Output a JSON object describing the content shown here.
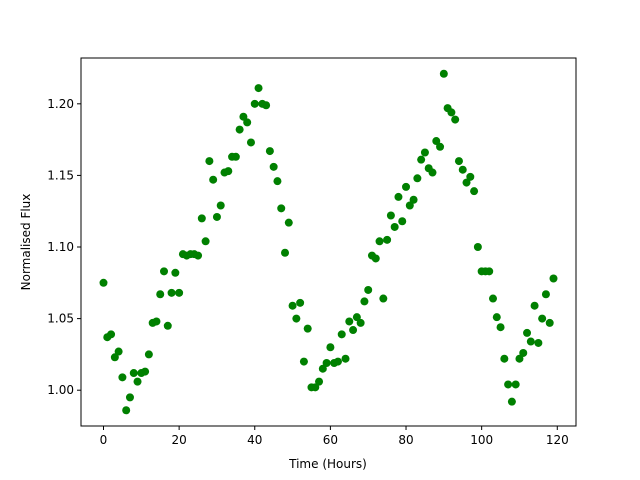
{
  "chart_data": {
    "type": "scatter",
    "xlabel": "Time (Hours)",
    "ylabel": "Normalised Flux",
    "color": "#008000",
    "grid": false,
    "x": [
      0,
      1,
      2,
      3,
      4,
      5,
      6,
      7,
      8,
      9,
      10,
      11,
      12,
      13,
      14,
      15,
      16,
      17,
      18,
      19,
      20,
      21,
      22,
      23,
      24,
      25,
      26,
      27,
      28,
      29,
      30,
      31,
      32,
      33,
      34,
      35,
      36,
      37,
      38,
      39,
      40,
      41,
      42,
      43,
      44,
      45,
      46,
      47,
      48,
      49,
      50,
      51,
      52,
      53,
      54,
      55,
      56,
      57,
      58,
      59,
      60,
      61,
      62,
      63,
      64,
      65,
      66,
      67,
      68,
      69,
      70,
      71,
      72,
      73,
      74,
      75,
      76,
      77,
      78,
      79,
      80,
      81,
      82,
      83,
      84,
      85,
      86,
      87,
      88,
      89,
      90,
      91,
      92,
      93,
      94,
      95,
      96,
      97,
      98,
      99,
      100,
      101,
      102,
      103,
      104,
      105,
      106,
      107,
      108,
      109,
      110,
      111,
      112,
      113,
      114,
      115,
      116,
      117,
      118,
      119
    ],
    "values": [
      1.075,
      1.037,
      1.039,
      1.023,
      1.027,
      1.009,
      0.986,
      0.995,
      1.012,
      1.006,
      1.012,
      1.013,
      1.025,
      1.047,
      1.048,
      1.067,
      1.083,
      1.045,
      1.068,
      1.082,
      1.068,
      1.095,
      1.094,
      1.095,
      1.095,
      1.094,
      1.12,
      1.104,
      1.16,
      1.147,
      1.121,
      1.129,
      1.152,
      1.153,
      1.163,
      1.163,
      1.182,
      1.191,
      1.187,
      1.173,
      1.2,
      1.211,
      1.2,
      1.199,
      1.167,
      1.156,
      1.146,
      1.127,
      1.096,
      1.117,
      1.059,
      1.05,
      1.061,
      1.02,
      1.043,
      1.002,
      1.002,
      1.006,
      1.015,
      1.019,
      1.03,
      1.019,
      1.02,
      1.039,
      1.022,
      1.048,
      1.042,
      1.051,
      1.047,
      1.062,
      1.07,
      1.094,
      1.092,
      1.104,
      1.064,
      1.105,
      1.122,
      1.114,
      1.135,
      1.118,
      1.142,
      1.129,
      1.133,
      1.148,
      1.161,
      1.166,
      1.155,
      1.152,
      1.174,
      1.17,
      1.221,
      1.197,
      1.194,
      1.189,
      1.16,
      1.154,
      1.145,
      1.149,
      1.139,
      1.1,
      1.083,
      1.083,
      1.083,
      1.064,
      1.051,
      1.044,
      1.022,
      1.004,
      0.992,
      1.004,
      1.022,
      1.026,
      1.04,
      1.034,
      1.059,
      1.033,
      1.05,
      1.067,
      1.047,
      1.078
    ],
    "xlim": [
      -5.95,
      124.95
    ],
    "xticks": [
      0,
      20,
      40,
      60,
      80,
      100,
      120
    ],
    "ylim": [
      0.975,
      1.232
    ],
    "yticks": [
      {
        "value": 1,
        "label": "1.00"
      },
      1.05,
      {
        "value": 1.1,
        "label": "1.10"
      },
      1.15,
      {
        "value": 1.2,
        "label": "1.20"
      }
    ]
  }
}
